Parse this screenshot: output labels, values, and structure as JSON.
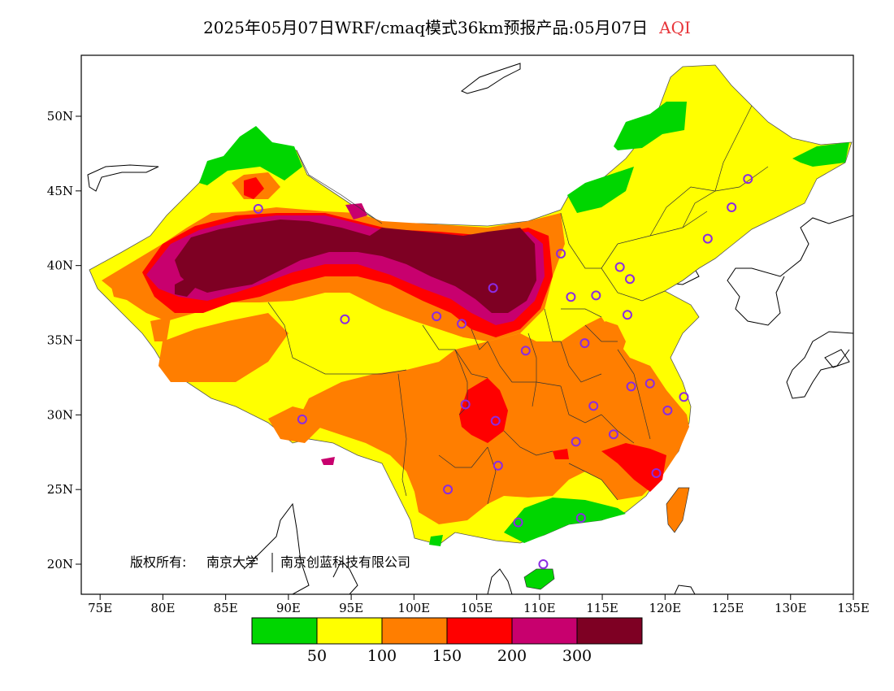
{
  "title": {
    "main": "2025年05月07日WRF/cmaq模式36km预报产品:05月07日",
    "pollutant": "AQI"
  },
  "copyright": {
    "prefix": "版权所有:",
    "org1": "南京大学",
    "org2": "南京创蓝科技有限公司"
  },
  "axes": {
    "x_ticks": [
      "75E",
      "80E",
      "85E",
      "90E",
      "95E",
      "100E",
      "105E",
      "110E",
      "115E",
      "120E",
      "125E",
      "130E",
      "135E"
    ],
    "y_ticks": [
      "50N",
      "45N",
      "40N",
      "35N",
      "30N",
      "25N",
      "20N"
    ]
  },
  "legend": {
    "bins": [
      {
        "color": "#00d600"
      },
      {
        "color": "#ffff00"
      },
      {
        "color": "#ff7e00"
      },
      {
        "color": "#ff0000"
      },
      {
        "color": "#c8006e"
      },
      {
        "color": "#7e0023"
      }
    ],
    "labels": [
      "50",
      "100",
      "150",
      "200",
      "300"
    ]
  },
  "colors": {
    "good": "#00d600",
    "moderate": "#ffff00",
    "usg": "#ff7e00",
    "unhealthy": "#ff0000",
    "very_unhealthy": "#c8006e",
    "hazardous": "#7e0023",
    "station": "#8a2be2"
  }
}
